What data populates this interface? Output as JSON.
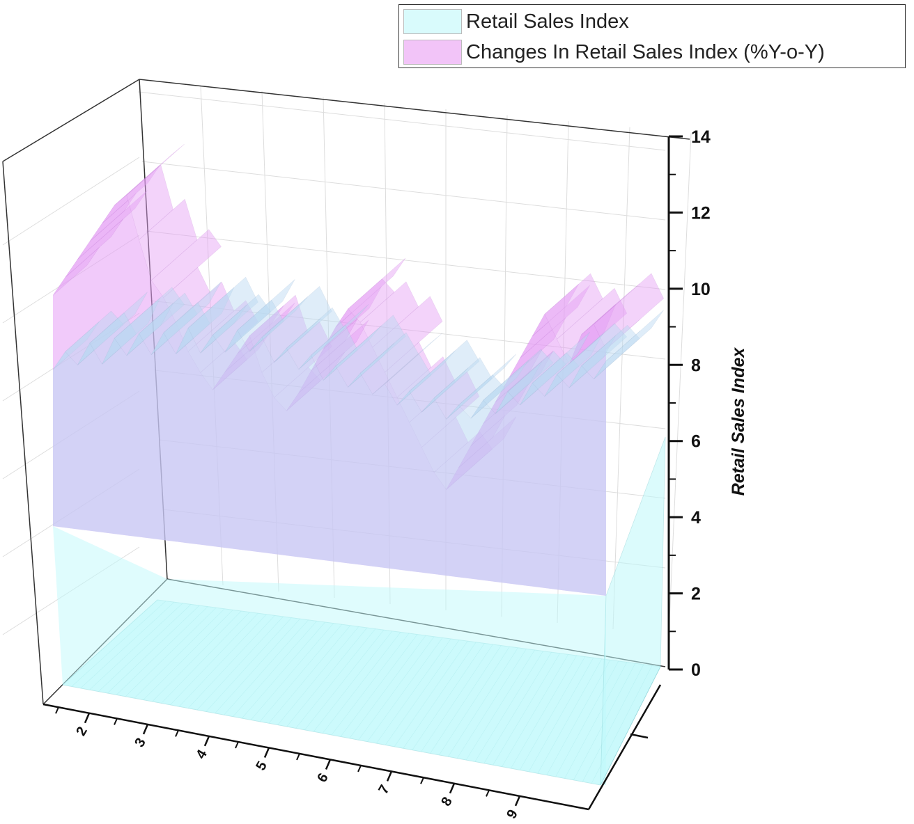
{
  "colors": {
    "retail": "#bff9fb",
    "retail_stroke": "#8fd6da",
    "changes": "#e59ef5",
    "changes_stroke": "#b05ec7",
    "axis": "#111111",
    "grid": "#dddddd"
  },
  "legend": {
    "items": [
      {
        "label": "Retail Sales Index",
        "color": "#d9fbfc"
      },
      {
        "label": "Changes In Retail Sales Index (%Y-o-Y)",
        "color": "#f2c4f8"
      }
    ],
    "placement": "top-right"
  },
  "chart_data": {
    "type": "area",
    "subtype": "3d-wall",
    "z_axis": {
      "label": "Retail Sales Index",
      "range": [
        0,
        14
      ],
      "ticks": [
        "0",
        "2",
        "4",
        "6",
        "8",
        "10",
        "12",
        "14"
      ]
    },
    "x_axis": {
      "label": "",
      "ticks": [
        "2",
        "3",
        "4",
        "5",
        "6",
        "7",
        "8",
        "9"
      ]
    },
    "grid": true,
    "series": [
      {
        "name": "Retail Sales Index",
        "values": [
          4.0,
          4.5,
          4.2,
          4.8,
          4.3,
          5.0,
          4.6,
          5.2,
          4.7,
          5.3,
          4.8,
          5.5,
          4.9,
          5.4,
          5.0,
          5.6,
          5.1,
          5.5,
          4.9,
          5.3,
          4.8,
          5.2,
          4.6,
          5.0,
          4.5,
          4.9,
          4.4,
          4.7,
          4.2,
          4.6,
          4.1,
          4.5,
          4.0,
          4.4,
          4.1,
          4.6,
          4.3,
          4.9,
          4.6,
          5.2,
          4.9,
          5.5,
          5.2,
          5.8,
          5.5,
          6.0
        ]
      },
      {
        "name": "Changes In Retail Sales Index (%Y-o-Y)",
        "values": [
          9.9,
          10.4,
          10.9,
          11.4,
          11.9,
          12.4,
          12.7,
          11.6,
          10.6,
          10.2,
          9.6,
          8.9,
          8.4,
          8.0,
          8.5,
          9.0,
          9.5,
          8.6,
          8.0,
          7.7,
          8.2,
          8.8,
          9.4,
          10.0,
          10.5,
          10.2,
          9.6,
          9.0,
          8.4,
          7.8,
          7.2,
          6.6,
          6.2,
          6.8,
          7.4,
          8.0,
          8.6,
          9.2,
          9.8,
          10.4,
          11.0,
          10.4,
          9.8,
          10.6,
          10.9,
          10.3
        ]
      }
    ]
  }
}
